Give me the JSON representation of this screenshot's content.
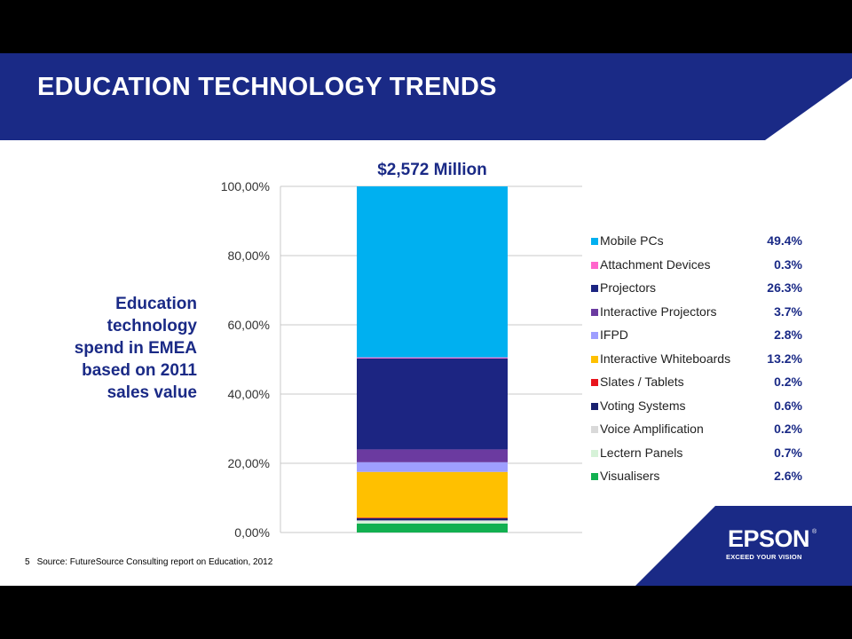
{
  "slide": {
    "title": "EDUCATION TECHNOLOGY TRENDS",
    "side_text": "Education\ntechnology\nspend in EMEA\nbased on 2011\nsales value",
    "footnote_number": "5",
    "footnote": "Source: FutureSource Consulting report on Education, 2012",
    "logo": {
      "brand": "EPSON",
      "mark": "®",
      "tagline": "EXCEED YOUR VISION"
    },
    "colors": {
      "header_blue": "#1a2a86",
      "accent_text": "#1a2a86"
    }
  },
  "chart_data": {
    "type": "bar",
    "stacked": true,
    "title": "$2,572 Million",
    "xlabel": "",
    "ylabel": "",
    "ylim": [
      0,
      100
    ],
    "y_tick_labels": [
      "0,00%",
      "20,00%",
      "40,00%",
      "60,00%",
      "80,00%",
      "100,00%"
    ],
    "y_ticks": [
      0,
      20,
      40,
      60,
      80,
      100
    ],
    "grid": true,
    "legend_position": "right",
    "series": [
      {
        "name": "Visualisers",
        "value": 2.6,
        "label": "2.6%",
        "color": "#12b050"
      },
      {
        "name": "Lectern Panels",
        "value": 0.7,
        "label": "0.7%",
        "color": "#d6f2d8"
      },
      {
        "name": "Voice Amplification",
        "value": 0.2,
        "label": "0.2%",
        "color": "#d9d9d9"
      },
      {
        "name": "Voting Systems",
        "value": 0.6,
        "label": "0.6%",
        "color": "#18206e"
      },
      {
        "name": "Slates / Tablets",
        "value": 0.2,
        "label": "0.2%",
        "color": "#e8141c"
      },
      {
        "name": "Interactive Whiteboards",
        "value": 13.2,
        "label": "13.2%",
        "color": "#ffc000"
      },
      {
        "name": "IFPD",
        "value": 2.8,
        "label": "2.8%",
        "color": "#9e9eff"
      },
      {
        "name": "Interactive Projectors",
        "value": 3.7,
        "label": "3.7%",
        "color": "#6b3aa0"
      },
      {
        "name": "Projectors",
        "value": 26.3,
        "label": "26.3%",
        "color": "#1c2582"
      },
      {
        "name": "Attachment Devices",
        "value": 0.3,
        "label": "0.3%",
        "color": "#ff66cc"
      },
      {
        "name": "Mobile PCs",
        "value": 49.4,
        "label": "49.4%",
        "color": "#00b0f0"
      }
    ]
  }
}
